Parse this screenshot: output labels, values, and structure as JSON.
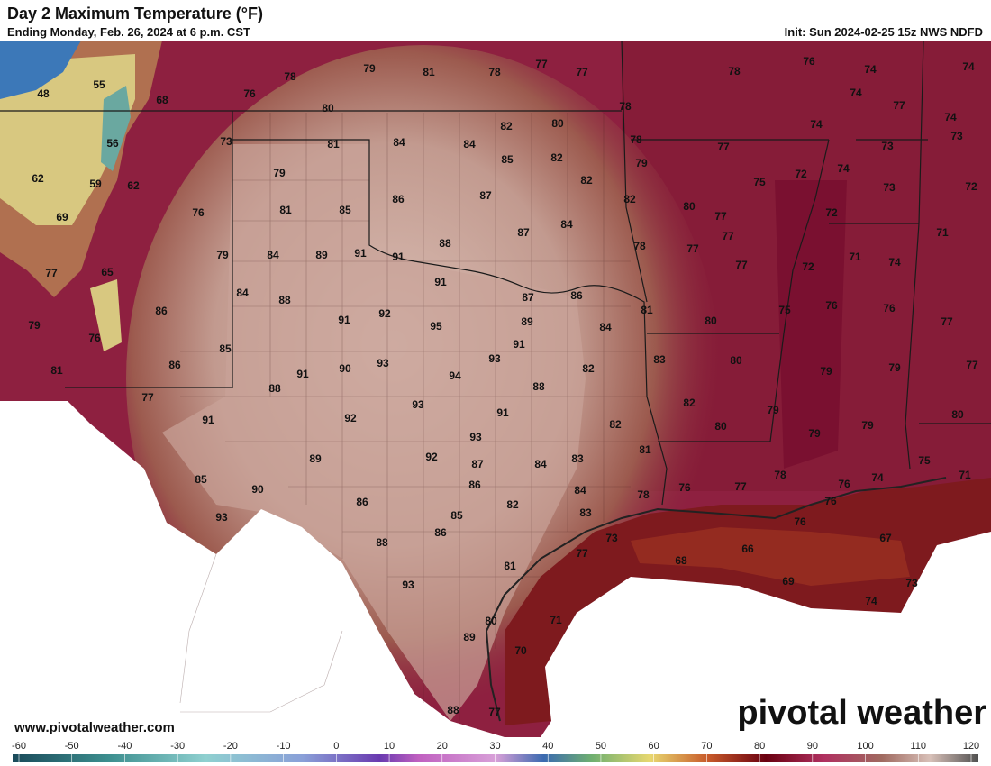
{
  "header": {
    "title": "Day 2 Maximum Temperature (°F)",
    "subtitle": "Ending Monday, Feb. 26, 2024 at 6 p.m. CST",
    "init": "Init: Sun 2024-02-25 15z NWS NDFD"
  },
  "map": {
    "labels": [
      48,
      55,
      68,
      76,
      78,
      79,
      81,
      78,
      77,
      77,
      78,
      76,
      74,
      74,
      80,
      78,
      74,
      77,
      74,
      56,
      73,
      81,
      84,
      84,
      82,
      80,
      78,
      77,
      74,
      73,
      73,
      62,
      59,
      62,
      79,
      85,
      82,
      79,
      72,
      74,
      75,
      82,
      73,
      72,
      69,
      76,
      81,
      85,
      86,
      87,
      82,
      80,
      77,
      72,
      84,
      87,
      77,
      65,
      79,
      84,
      89,
      91,
      88,
      91,
      78,
      77,
      77,
      77,
      72,
      71,
      74,
      71,
      91,
      84,
      88,
      87,
      86,
      81,
      80,
      75,
      76,
      76,
      77,
      86,
      79,
      76,
      91,
      92,
      95,
      89,
      84,
      85,
      81,
      86,
      91,
      90,
      93,
      91,
      94,
      93,
      82,
      83,
      80,
      79,
      79,
      77,
      77,
      88,
      88,
      93,
      82,
      79,
      80,
      91,
      92,
      91,
      82,
      80,
      79,
      79,
      93,
      89,
      92,
      87,
      84,
      83,
      81,
      75,
      71,
      85,
      90,
      86,
      84,
      78,
      76,
      74,
      78,
      76,
      77,
      93,
      86,
      82,
      85,
      83,
      76,
      76,
      88,
      86,
      73,
      77,
      66,
      67,
      81,
      68,
      93,
      69,
      73,
      74,
      71,
      80,
      89,
      70,
      88,
      77
    ]
  },
  "footer": {
    "website": "www.pivotalweather.com",
    "logo": "pivotal weather"
  },
  "colorbar": {
    "ticks": [
      -60,
      -50,
      -40,
      -30,
      -20,
      -10,
      0,
      10,
      20,
      30,
      40,
      50,
      60,
      70,
      80,
      90,
      100,
      110,
      120
    ]
  }
}
